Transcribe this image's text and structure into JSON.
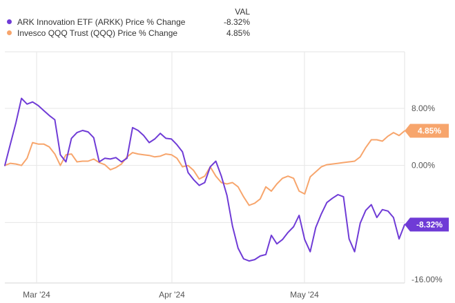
{
  "legend": {
    "header": "VAL",
    "entries": [
      {
        "name": "ARK Innovation ETF (ARKK) Price % Change",
        "value": "-8.32%",
        "color": "#6f3bd6"
      },
      {
        "name": "Invesco QQQ Trust (QQQ) Price % Change",
        "value": "4.85%",
        "color": "#f7a56c"
      }
    ]
  },
  "chart_data": {
    "type": "line",
    "x_tick_labels": [
      "Mar '24",
      "Apr '24",
      "May '24"
    ],
    "y_tick_labels": [
      "8.00%",
      "0.00%",
      "-8.00%",
      "-16.00%"
    ],
    "ylim": [
      -16,
      8
    ],
    "grid": true,
    "series": [
      {
        "name": "ARK Innovation ETF (ARKK) Price % Change",
        "color": "#6f3bd6",
        "end_label": "-8.32%",
        "values": [
          0.0,
          3.0,
          6.0,
          9.4,
          8.6,
          8.9,
          8.4,
          7.7,
          7.0,
          6.4,
          1.5,
          0.5,
          3.8,
          4.6,
          4.9,
          4.7,
          3.9,
          0.5,
          1.0,
          0.9,
          1.1,
          0.5,
          1.0,
          5.3,
          4.9,
          4.2,
          3.2,
          3.7,
          4.5,
          3.8,
          3.7,
          2.9,
          1.9,
          -1.0,
          -2.0,
          -2.8,
          -2.4,
          -0.2,
          0.6,
          -1.5,
          -4.2,
          -8.5,
          -11.6,
          -13.1,
          -13.4,
          -13.2,
          -12.7,
          -12.5,
          -9.8,
          -11.0,
          -10.4,
          -9.4,
          -8.6,
          -7.0,
          -10.4,
          -12.1,
          -8.7,
          -6.8,
          -5.2,
          -4.6,
          -4.1,
          -4.4,
          -10.3,
          -12.1,
          -8.1,
          -6.3,
          -5.5,
          -7.3,
          -6.2,
          -6.4,
          -7.3,
          -10.3,
          -8.3
        ]
      },
      {
        "name": "Invesco QQQ Trust (QQQ) Price % Change",
        "color": "#f7a56c",
        "end_label": "4.85%",
        "values": [
          0.0,
          0.3,
          0.2,
          0.0,
          1.0,
          3.2,
          3.0,
          3.0,
          2.6,
          1.6,
          0.0,
          1.5,
          1.6,
          0.5,
          0.6,
          0.6,
          0.9,
          0.4,
          0.1,
          -0.6,
          -0.3,
          0.2,
          1.2,
          1.8,
          1.6,
          1.5,
          1.4,
          1.2,
          1.3,
          1.6,
          1.5,
          1.0,
          -0.2,
          0.0,
          -0.7,
          -1.9,
          -1.5,
          -0.2,
          -1.5,
          -2.4,
          -2.6,
          -2.4,
          -3.0,
          -4.4,
          -5.6,
          -5.3,
          -4.7,
          -3.0,
          -3.6,
          -2.6,
          -1.8,
          -1.5,
          -1.8,
          -3.6,
          -4.0,
          -1.6,
          -0.9,
          -0.2,
          0.1,
          0.2,
          0.3,
          0.4,
          0.5,
          0.6,
          1.2,
          2.5,
          3.6,
          3.6,
          3.4,
          4.1,
          4.6,
          4.2,
          4.85
        ]
      }
    ]
  }
}
